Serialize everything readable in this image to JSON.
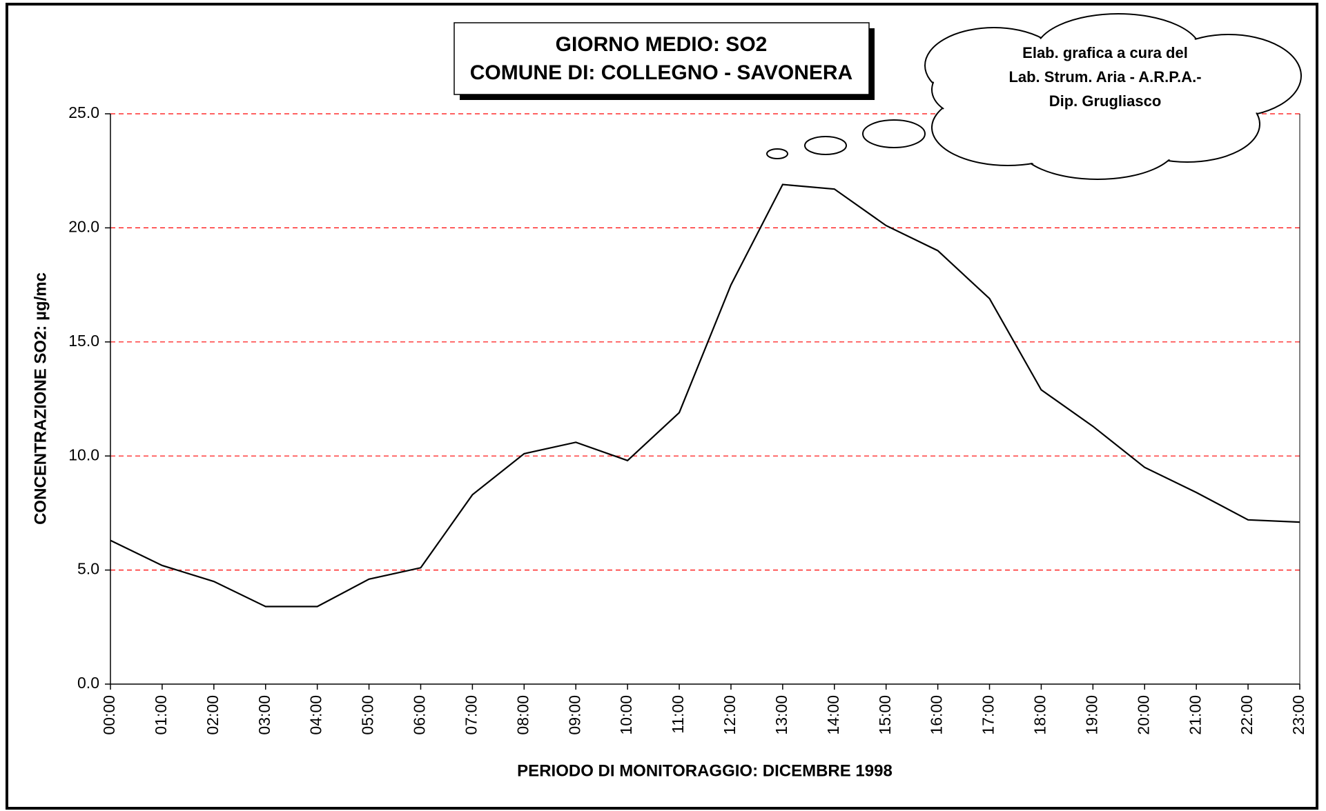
{
  "chart_data": {
    "type": "line",
    "title": "GIORNO MEDIO: SO2",
    "subtitle": "COMUNE DI: COLLEGNO - SAVONERA",
    "annotation": [
      "Elab. grafica a cura del",
      "Lab. Strum. Aria - A.R.P.A.-",
      "Dip. Grugliasco"
    ],
    "x_label": "PERIODO DI MONITORAGGIO: DICEMBRE 1998",
    "y_label": "CONCENTRAZIONE SO2: µg/mc",
    "categories": [
      "00:00",
      "01:00",
      "02:00",
      "03:00",
      "04:00",
      "05:00",
      "06:00",
      "07:00",
      "08:00",
      "09:00",
      "10:00",
      "11:00",
      "12:00",
      "13:00",
      "14:00",
      "15:00",
      "16:00",
      "17:00",
      "18:00",
      "19:00",
      "20:00",
      "21:00",
      "22:00",
      "23:00"
    ],
    "values": [
      6.3,
      5.2,
      4.5,
      3.4,
      3.4,
      4.6,
      5.1,
      8.3,
      10.1,
      10.6,
      9.8,
      11.9,
      17.5,
      21.9,
      21.7,
      20.1,
      19.0,
      16.9,
      12.9,
      11.3,
      9.5,
      8.4,
      7.2,
      7.1
    ],
    "color": "#000000",
    "ylim": [
      0,
      25
    ],
    "yticks": [
      {
        "value": 0,
        "label": "0.0"
      },
      {
        "value": 5,
        "label": "5.0"
      },
      {
        "value": 10,
        "label": "10.0"
      },
      {
        "value": 15,
        "label": "15.0"
      },
      {
        "value": 20,
        "label": "20.0"
      },
      {
        "value": 25,
        "label": "25.0"
      }
    ],
    "grid": true,
    "grid_color": "#ff0000"
  }
}
